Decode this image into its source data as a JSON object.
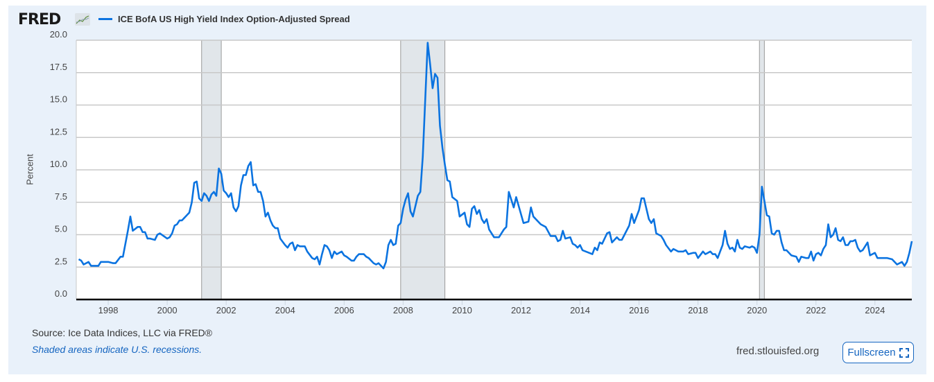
{
  "header": {
    "logo_text": "FRED",
    "legend_label": "ICE BofA US High Yield Index Option-Adjusted Spread"
  },
  "footer": {
    "source": "Source: Ice Data Indices, LLC via FRED®",
    "note": "Shaded areas indicate U.S. recessions.",
    "site": "fred.stlouisfed.org",
    "fullscreen_label": "Fullscreen"
  },
  "chart_data": {
    "type": "line",
    "title": "",
    "xlabel": "",
    "ylabel": "Percent",
    "xlim": [
      "1996-12",
      "2025-04"
    ],
    "ylim": [
      0,
      20
    ],
    "grid": true,
    "legend": "top-left",
    "line_color": "#0b73e0",
    "recession_color": "#e1e6ea",
    "yticks": [
      "0.0",
      "2.5",
      "5.0",
      "7.5",
      "10.0",
      "12.5",
      "15.0",
      "17.5",
      "20.0"
    ],
    "xticks": [
      "1998",
      "2000",
      "2002",
      "2004",
      "2006",
      "2008",
      "2010",
      "2012",
      "2014",
      "2016",
      "2018",
      "2020",
      "2022",
      "2024"
    ],
    "recessions": [
      [
        "2001-03",
        "2001-11"
      ],
      [
        "2007-12",
        "2009-06"
      ],
      [
        "2020-02",
        "2020-04"
      ]
    ],
    "series": [
      {
        "name": "ICE BofA US High Yield Index Option-Adjusted Spread",
        "points": [
          [
            "1997-01",
            3.1
          ],
          [
            "1997-02",
            3.0
          ],
          [
            "1997-03",
            2.7
          ],
          [
            "1997-05",
            2.9
          ],
          [
            "1997-06",
            2.6
          ],
          [
            "1997-07",
            2.6
          ],
          [
            "1997-08",
            2.6
          ],
          [
            "1997-09",
            2.6
          ],
          [
            "1997-10",
            2.9
          ],
          [
            "1997-11",
            2.9
          ],
          [
            "1997-12",
            2.9
          ],
          [
            "1998-01",
            2.9
          ],
          [
            "1998-03",
            2.8
          ],
          [
            "1998-04",
            2.8
          ],
          [
            "1998-06",
            3.3
          ],
          [
            "1998-07",
            3.3
          ],
          [
            "1998-09",
            5.3
          ],
          [
            "1998-10",
            6.4
          ],
          [
            "1998-11",
            5.3
          ],
          [
            "1999-01",
            5.6
          ],
          [
            "1999-02",
            5.6
          ],
          [
            "1999-03",
            5.2
          ],
          [
            "1999-04",
            5.2
          ],
          [
            "1999-05",
            4.7
          ],
          [
            "1999-06",
            4.7
          ],
          [
            "1999-08",
            4.6
          ],
          [
            "1999-09",
            5.0
          ],
          [
            "1999-10",
            5.1
          ],
          [
            "2000-01",
            4.7
          ],
          [
            "2000-02",
            4.8
          ],
          [
            "2000-03",
            5.1
          ],
          [
            "2000-04",
            5.7
          ],
          [
            "2000-05",
            5.8
          ],
          [
            "2000-06",
            6.1
          ],
          [
            "2000-07",
            6.1
          ],
          [
            "2000-08",
            6.3
          ],
          [
            "2000-09",
            6.5
          ],
          [
            "2000-10",
            6.7
          ],
          [
            "2000-11",
            7.5
          ],
          [
            "2000-12",
            9.0
          ],
          [
            "2001-01",
            9.1
          ],
          [
            "2001-02",
            7.8
          ],
          [
            "2001-03",
            7.6
          ],
          [
            "2001-04",
            8.2
          ],
          [
            "2001-05",
            8.0
          ],
          [
            "2001-06",
            7.6
          ],
          [
            "2001-07",
            8.1
          ],
          [
            "2001-08",
            8.3
          ],
          [
            "2001-09",
            8.0
          ],
          [
            "2001-10",
            10.1
          ],
          [
            "2001-11",
            9.7
          ],
          [
            "2001-12",
            8.4
          ],
          [
            "2002-01",
            8.2
          ],
          [
            "2002-02",
            7.9
          ],
          [
            "2002-03",
            8.2
          ],
          [
            "2002-04",
            7.1
          ],
          [
            "2002-05",
            6.8
          ],
          [
            "2002-06",
            7.2
          ],
          [
            "2002-07",
            8.8
          ],
          [
            "2002-08",
            9.6
          ],
          [
            "2002-09",
            9.6
          ],
          [
            "2002-10",
            10.3
          ],
          [
            "2002-11",
            10.6
          ],
          [
            "2002-12",
            8.8
          ],
          [
            "2003-01",
            8.9
          ],
          [
            "2003-02",
            8.3
          ],
          [
            "2003-03",
            8.3
          ],
          [
            "2003-04",
            7.6
          ],
          [
            "2003-05",
            6.4
          ],
          [
            "2003-06",
            6.7
          ],
          [
            "2003-07",
            6.1
          ],
          [
            "2003-08",
            5.7
          ],
          [
            "2003-09",
            5.5
          ],
          [
            "2003-10",
            5.5
          ],
          [
            "2003-11",
            4.7
          ],
          [
            "2004-01",
            4.2
          ],
          [
            "2004-02",
            4.0
          ],
          [
            "2004-03",
            4.3
          ],
          [
            "2004-04",
            4.4
          ],
          [
            "2004-05",
            3.8
          ],
          [
            "2004-06",
            4.2
          ],
          [
            "2004-07",
            4.1
          ],
          [
            "2004-09",
            4.1
          ],
          [
            "2004-10",
            3.7
          ],
          [
            "2004-12",
            3.2
          ],
          [
            "2005-01",
            3.1
          ],
          [
            "2005-02",
            3.3
          ],
          [
            "2005-03",
            2.7
          ],
          [
            "2005-04",
            3.5
          ],
          [
            "2005-05",
            4.2
          ],
          [
            "2005-06",
            4.1
          ],
          [
            "2005-07",
            3.8
          ],
          [
            "2005-08",
            3.2
          ],
          [
            "2005-09",
            3.7
          ],
          [
            "2005-10",
            3.5
          ],
          [
            "2005-12",
            3.7
          ],
          [
            "2006-01",
            3.4
          ],
          [
            "2006-02",
            3.3
          ],
          [
            "2006-04",
            3.0
          ],
          [
            "2006-05",
            3.0
          ],
          [
            "2006-06",
            3.3
          ],
          [
            "2006-07",
            3.5
          ],
          [
            "2006-09",
            3.5
          ],
          [
            "2006-10",
            3.3
          ],
          [
            "2006-11",
            3.2
          ],
          [
            "2007-01",
            2.8
          ],
          [
            "2007-02",
            2.7
          ],
          [
            "2007-03",
            2.8
          ],
          [
            "2007-04",
            2.6
          ],
          [
            "2007-05",
            2.4
          ],
          [
            "2007-06",
            2.9
          ],
          [
            "2007-07",
            4.2
          ],
          [
            "2007-08",
            4.6
          ],
          [
            "2007-09",
            4.2
          ],
          [
            "2007-10",
            4.3
          ],
          [
            "2007-11",
            5.7
          ],
          [
            "2007-12",
            5.9
          ],
          [
            "2008-01",
            7.0
          ],
          [
            "2008-02",
            7.7
          ],
          [
            "2008-03",
            8.2
          ],
          [
            "2008-04",
            6.8
          ],
          [
            "2008-05",
            6.4
          ],
          [
            "2008-07",
            8.0
          ],
          [
            "2008-08",
            8.3
          ],
          [
            "2008-09",
            11.0
          ],
          [
            "2008-11",
            19.8
          ],
          [
            "2008-12",
            18.1
          ],
          [
            "2009-01",
            16.3
          ],
          [
            "2009-02",
            17.4
          ],
          [
            "2009-03",
            17.1
          ],
          [
            "2009-04",
            13.4
          ],
          [
            "2009-05",
            11.7
          ],
          [
            "2009-06",
            10.4
          ],
          [
            "2009-07",
            9.2
          ],
          [
            "2009-08",
            9.1
          ],
          [
            "2009-09",
            7.9
          ],
          [
            "2009-11",
            7.6
          ],
          [
            "2009-12",
            6.4
          ],
          [
            "2010-02",
            6.7
          ],
          [
            "2010-03",
            5.8
          ],
          [
            "2010-04",
            5.6
          ],
          [
            "2010-05",
            7.0
          ],
          [
            "2010-06",
            7.2
          ],
          [
            "2010-07",
            6.6
          ],
          [
            "2010-08",
            6.9
          ],
          [
            "2010-09",
            6.2
          ],
          [
            "2010-10",
            5.9
          ],
          [
            "2010-11",
            6.2
          ],
          [
            "2010-12",
            5.4
          ],
          [
            "2011-02",
            4.8
          ],
          [
            "2011-04",
            4.8
          ],
          [
            "2011-06",
            5.4
          ],
          [
            "2011-07",
            5.6
          ],
          [
            "2011-08",
            8.3
          ],
          [
            "2011-10",
            7.1
          ],
          [
            "2011-11",
            7.9
          ],
          [
            "2012-02",
            5.9
          ],
          [
            "2012-04",
            6.0
          ],
          [
            "2012-05",
            7.1
          ],
          [
            "2012-06",
            6.4
          ],
          [
            "2012-09",
            5.8
          ],
          [
            "2012-11",
            5.6
          ],
          [
            "2013-01",
            4.9
          ],
          [
            "2013-03",
            4.9
          ],
          [
            "2013-04",
            4.5
          ],
          [
            "2013-05",
            4.6
          ],
          [
            "2013-06",
            5.3
          ],
          [
            "2013-07",
            4.7
          ],
          [
            "2013-09",
            4.8
          ],
          [
            "2013-10",
            4.3
          ],
          [
            "2013-11",
            4.2
          ],
          [
            "2013-12",
            4.0
          ],
          [
            "2014-01",
            4.2
          ],
          [
            "2014-02",
            3.8
          ],
          [
            "2014-06",
            3.5
          ],
          [
            "2014-07",
            4.0
          ],
          [
            "2014-08",
            3.8
          ],
          [
            "2014-09",
            4.4
          ],
          [
            "2014-10",
            4.3
          ],
          [
            "2014-12",
            5.1
          ],
          [
            "2015-01",
            5.2
          ],
          [
            "2015-02",
            4.4
          ],
          [
            "2015-04",
            4.8
          ],
          [
            "2015-05",
            4.6
          ],
          [
            "2015-06",
            4.6
          ],
          [
            "2015-09",
            5.7
          ],
          [
            "2015-10",
            6.6
          ],
          [
            "2015-11",
            5.9
          ],
          [
            "2016-01",
            6.9
          ],
          [
            "2016-02",
            7.8
          ],
          [
            "2016-03",
            7.8
          ],
          [
            "2016-05",
            6.2
          ],
          [
            "2016-06",
            5.9
          ],
          [
            "2016-07",
            6.2
          ],
          [
            "2016-08",
            5.1
          ],
          [
            "2016-10",
            4.9
          ],
          [
            "2016-11",
            4.6
          ],
          [
            "2016-12",
            4.2
          ],
          [
            "2017-02",
            3.7
          ],
          [
            "2017-03",
            3.9
          ],
          [
            "2017-05",
            3.7
          ],
          [
            "2017-07",
            3.7
          ],
          [
            "2017-08",
            3.8
          ],
          [
            "2017-09",
            3.5
          ],
          [
            "2017-11",
            3.6
          ],
          [
            "2017-12",
            3.6
          ],
          [
            "2018-01",
            3.2
          ],
          [
            "2018-03",
            3.7
          ],
          [
            "2018-04",
            3.5
          ],
          [
            "2018-06",
            3.7
          ],
          [
            "2018-07",
            3.5
          ],
          [
            "2018-08",
            3.5
          ],
          [
            "2018-09",
            3.2
          ],
          [
            "2018-11",
            4.2
          ],
          [
            "2018-12",
            5.3
          ],
          [
            "2019-01",
            4.3
          ],
          [
            "2019-02",
            3.9
          ],
          [
            "2019-03",
            4.0
          ],
          [
            "2019-04",
            3.7
          ],
          [
            "2019-05",
            4.6
          ],
          [
            "2019-06",
            4.0
          ],
          [
            "2019-07",
            3.9
          ],
          [
            "2019-08",
            4.1
          ],
          [
            "2019-10",
            4.0
          ],
          [
            "2019-11",
            4.1
          ],
          [
            "2019-12",
            4.0
          ],
          [
            "2020-01",
            3.6
          ],
          [
            "2020-02",
            5.0
          ],
          [
            "2020-03",
            8.7
          ],
          [
            "2020-04",
            7.6
          ],
          [
            "2020-05",
            6.5
          ],
          [
            "2020-06",
            6.4
          ],
          [
            "2020-07",
            5.1
          ],
          [
            "2020-08",
            5.0
          ],
          [
            "2020-09",
            5.3
          ],
          [
            "2020-10",
            5.3
          ],
          [
            "2020-11",
            4.4
          ],
          [
            "2020-12",
            3.8
          ],
          [
            "2021-01",
            3.8
          ],
          [
            "2021-03",
            3.4
          ],
          [
            "2021-05",
            3.3
          ],
          [
            "2021-06",
            2.9
          ],
          [
            "2021-07",
            3.3
          ],
          [
            "2021-09",
            3.2
          ],
          [
            "2021-10",
            3.2
          ],
          [
            "2021-11",
            3.7
          ],
          [
            "2021-12",
            3.0
          ],
          [
            "2022-01",
            3.5
          ],
          [
            "2022-02",
            3.6
          ],
          [
            "2022-03",
            3.4
          ],
          [
            "2022-04",
            3.9
          ],
          [
            "2022-05",
            4.2
          ],
          [
            "2022-06",
            5.8
          ],
          [
            "2022-07",
            4.8
          ],
          [
            "2022-08",
            5.0
          ],
          [
            "2022-09",
            5.5
          ],
          [
            "2022-10",
            4.6
          ],
          [
            "2022-11",
            4.5
          ],
          [
            "2022-12",
            4.8
          ],
          [
            "2023-01",
            4.2
          ],
          [
            "2023-02",
            4.2
          ],
          [
            "2023-03",
            4.5
          ],
          [
            "2023-04",
            4.5
          ],
          [
            "2023-05",
            4.6
          ],
          [
            "2023-06",
            4.0
          ],
          [
            "2023-07",
            3.7
          ],
          [
            "2023-08",
            3.8
          ],
          [
            "2023-10",
            4.4
          ],
          [
            "2023-11",
            3.4
          ],
          [
            "2024-01",
            3.6
          ],
          [
            "2024-02",
            3.2
          ],
          [
            "2024-06",
            3.2
          ],
          [
            "2024-08",
            3.1
          ],
          [
            "2024-10",
            2.7
          ],
          [
            "2024-12",
            2.9
          ],
          [
            "2025-01",
            2.6
          ],
          [
            "2025-02",
            2.9
          ],
          [
            "2025-03",
            3.6
          ],
          [
            "2025-04",
            4.5
          ]
        ]
      }
    ]
  }
}
